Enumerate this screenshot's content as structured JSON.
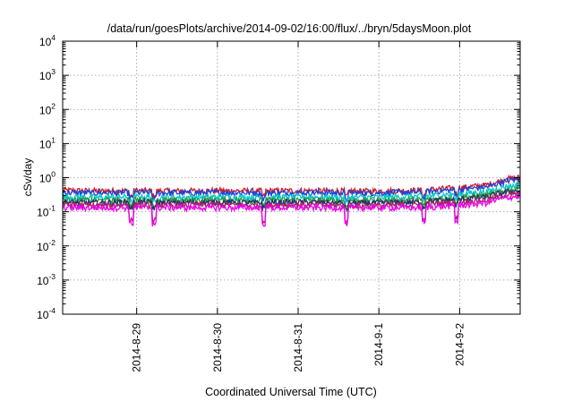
{
  "chart_data": {
    "type": "line",
    "title": "/data/run/goesPlots/archive/2014-09-02/16:00/flux/../bryn/5daysMoon.plot",
    "xlabel": "Coordinated Universal Time (UTC)",
    "ylabel": "cSv/day",
    "yscale": "log",
    "ylim": [
      0.0001,
      10000
    ],
    "y_ticks": [
      {
        "base": "10",
        "exp": "-4",
        "value": 0.0001
      },
      {
        "base": "10",
        "exp": "-3",
        "value": 0.001
      },
      {
        "base": "10",
        "exp": "-2",
        "value": 0.01
      },
      {
        "base": "10",
        "exp": "-1",
        "value": 0.1
      },
      {
        "base": "10",
        "exp": "0",
        "value": 1
      },
      {
        "base": "10",
        "exp": "1",
        "value": 10
      },
      {
        "base": "10",
        "exp": "2",
        "value": 100
      },
      {
        "base": "10",
        "exp": "3",
        "value": 1000
      },
      {
        "base": "10",
        "exp": "4",
        "value": 10000
      }
    ],
    "xlim": [
      "2014-08-28 02:00",
      "2014-09-02 18:00"
    ],
    "x_ticks": [
      {
        "label": "2014-8-29",
        "time": "2014-08-29 00:00"
      },
      {
        "label": "2014-8-30",
        "time": "2014-08-30 00:00"
      },
      {
        "label": "2014-8-31",
        "time": "2014-08-31 00:00"
      },
      {
        "label": "2014-9-1",
        "time": "2014-09-01 00:00"
      },
      {
        "label": "2014-9-2",
        "time": "2014-09-02 00:00"
      }
    ],
    "grid": true,
    "legend": "none",
    "series": [
      {
        "color": "#cc1a2a",
        "values": [
          {
            "x": "2014-08-28 02:00",
            "y": 0.42
          },
          {
            "x": "2014-08-28 12:00",
            "y": 0.4
          },
          {
            "x": "2014-08-29 00:00",
            "y": 0.41
          },
          {
            "x": "2014-08-29 12:00",
            "y": 0.4
          },
          {
            "x": "2014-08-30 00:00",
            "y": 0.41
          },
          {
            "x": "2014-08-30 12:00",
            "y": 0.4
          },
          {
            "x": "2014-08-31 00:00",
            "y": 0.41
          },
          {
            "x": "2014-08-31 12:00",
            "y": 0.4
          },
          {
            "x": "2014-09-01 00:00",
            "y": 0.4
          },
          {
            "x": "2014-09-01 12:00",
            "y": 0.42
          },
          {
            "x": "2014-09-02 00:00",
            "y": 0.5
          },
          {
            "x": "2014-09-02 08:00",
            "y": 0.6
          },
          {
            "x": "2014-09-02 14:00",
            "y": 0.9
          },
          {
            "x": "2014-09-02 18:00",
            "y": 1.0
          }
        ]
      },
      {
        "color": "#1a44dd",
        "values": [
          {
            "x": "2014-08-28 02:00",
            "y": 0.36
          },
          {
            "x": "2014-08-28 12:00",
            "y": 0.35
          },
          {
            "x": "2014-08-29 00:00",
            "y": 0.36
          },
          {
            "x": "2014-08-29 12:00",
            "y": 0.35
          },
          {
            "x": "2014-08-30 00:00",
            "y": 0.36
          },
          {
            "x": "2014-08-30 12:00",
            "y": 0.35
          },
          {
            "x": "2014-08-31 00:00",
            "y": 0.36
          },
          {
            "x": "2014-08-31 12:00",
            "y": 0.35
          },
          {
            "x": "2014-09-01 00:00",
            "y": 0.35
          },
          {
            "x": "2014-09-01 12:00",
            "y": 0.37
          },
          {
            "x": "2014-09-02 00:00",
            "y": 0.44
          },
          {
            "x": "2014-09-02 08:00",
            "y": 0.52
          },
          {
            "x": "2014-09-02 14:00",
            "y": 0.8
          },
          {
            "x": "2014-09-02 18:00",
            "y": 0.9
          }
        ]
      },
      {
        "color": "#00c8c8",
        "values": [
          {
            "x": "2014-08-28 02:00",
            "y": 0.27
          },
          {
            "x": "2014-08-28 12:00",
            "y": 0.26
          },
          {
            "x": "2014-08-29 00:00",
            "y": 0.27
          },
          {
            "x": "2014-08-29 12:00",
            "y": 0.26
          },
          {
            "x": "2014-08-30 00:00",
            "y": 0.27
          },
          {
            "x": "2014-08-30 12:00",
            "y": 0.26
          },
          {
            "x": "2014-08-31 00:00",
            "y": 0.27
          },
          {
            "x": "2014-08-31 12:00",
            "y": 0.26
          },
          {
            "x": "2014-09-01 00:00",
            "y": 0.26
          },
          {
            "x": "2014-09-01 12:00",
            "y": 0.28
          },
          {
            "x": "2014-09-02 00:00",
            "y": 0.33
          },
          {
            "x": "2014-09-02 08:00",
            "y": 0.38
          },
          {
            "x": "2014-09-02 14:00",
            "y": 0.55
          },
          {
            "x": "2014-09-02 18:00",
            "y": 0.6
          }
        ]
      },
      {
        "color": "#2a9a40",
        "values": [
          {
            "x": "2014-08-28 02:00",
            "y": 0.22
          },
          {
            "x": "2014-08-28 12:00",
            "y": 0.21
          },
          {
            "x": "2014-08-29 00:00",
            "y": 0.22
          },
          {
            "x": "2014-08-29 12:00",
            "y": 0.21
          },
          {
            "x": "2014-08-30 00:00",
            "y": 0.22
          },
          {
            "x": "2014-08-30 12:00",
            "y": 0.21
          },
          {
            "x": "2014-08-31 00:00",
            "y": 0.22
          },
          {
            "x": "2014-08-31 12:00",
            "y": 0.21
          },
          {
            "x": "2014-09-01 00:00",
            "y": 0.21
          },
          {
            "x": "2014-09-01 12:00",
            "y": 0.22
          },
          {
            "x": "2014-09-02 00:00",
            "y": 0.26
          },
          {
            "x": "2014-09-02 08:00",
            "y": 0.3
          },
          {
            "x": "2014-09-02 14:00",
            "y": 0.42
          },
          {
            "x": "2014-09-02 18:00",
            "y": 0.45
          }
        ]
      },
      {
        "color": "#223366",
        "values": [
          {
            "x": "2014-08-28 02:00",
            "y": 0.19
          },
          {
            "x": "2014-08-28 12:00",
            "y": 0.18
          },
          {
            "x": "2014-08-29 00:00",
            "y": 0.19
          },
          {
            "x": "2014-08-29 12:00",
            "y": 0.18
          },
          {
            "x": "2014-08-30 00:00",
            "y": 0.19
          },
          {
            "x": "2014-08-30 12:00",
            "y": 0.18
          },
          {
            "x": "2014-08-31 00:00",
            "y": 0.19
          },
          {
            "x": "2014-08-31 12:00",
            "y": 0.18
          },
          {
            "x": "2014-09-01 00:00",
            "y": 0.18
          },
          {
            "x": "2014-09-01 12:00",
            "y": 0.19
          },
          {
            "x": "2014-09-02 00:00",
            "y": 0.23
          },
          {
            "x": "2014-09-02 08:00",
            "y": 0.27
          },
          {
            "x": "2014-09-02 14:00",
            "y": 0.38
          },
          {
            "x": "2014-09-02 18:00",
            "y": 0.4
          }
        ]
      },
      {
        "color": "#aa2266",
        "values": [
          {
            "x": "2014-08-28 02:00",
            "y": 0.16
          },
          {
            "x": "2014-08-28 12:00",
            "y": 0.15
          },
          {
            "x": "2014-08-29 00:00",
            "y": 0.16
          },
          {
            "x": "2014-08-29 12:00",
            "y": 0.15
          },
          {
            "x": "2014-08-30 00:00",
            "y": 0.16
          },
          {
            "x": "2014-08-30 12:00",
            "y": 0.15
          },
          {
            "x": "2014-08-31 00:00",
            "y": 0.16
          },
          {
            "x": "2014-08-31 12:00",
            "y": 0.15
          },
          {
            "x": "2014-09-01 00:00",
            "y": 0.15
          },
          {
            "x": "2014-09-01 12:00",
            "y": 0.16
          },
          {
            "x": "2014-09-02 00:00",
            "y": 0.19
          },
          {
            "x": "2014-09-02 08:00",
            "y": 0.22
          },
          {
            "x": "2014-09-02 14:00",
            "y": 0.31
          },
          {
            "x": "2014-09-02 18:00",
            "y": 0.33
          }
        ]
      },
      {
        "color": "#ee00ee",
        "values": [
          {
            "x": "2014-08-28 02:00",
            "y": 0.13
          },
          {
            "x": "2014-08-28 12:00",
            "y": 0.13
          },
          {
            "x": "2014-08-29 00:00",
            "y": 0.13
          },
          {
            "x": "2014-08-29 12:00",
            "y": 0.13
          },
          {
            "x": "2014-08-30 00:00",
            "y": 0.13
          },
          {
            "x": "2014-08-30 12:00",
            "y": 0.13
          },
          {
            "x": "2014-08-31 00:00",
            "y": 0.13
          },
          {
            "x": "2014-08-31 12:00",
            "y": 0.13
          },
          {
            "x": "2014-09-01 00:00",
            "y": 0.13
          },
          {
            "x": "2014-09-01 12:00",
            "y": 0.13
          },
          {
            "x": "2014-09-02 00:00",
            "y": 0.15
          },
          {
            "x": "2014-09-02 08:00",
            "y": 0.18
          },
          {
            "x": "2014-09-02 14:00",
            "y": 0.26
          },
          {
            "x": "2014-09-02 18:00",
            "y": 0.28
          }
        ]
      }
    ]
  }
}
